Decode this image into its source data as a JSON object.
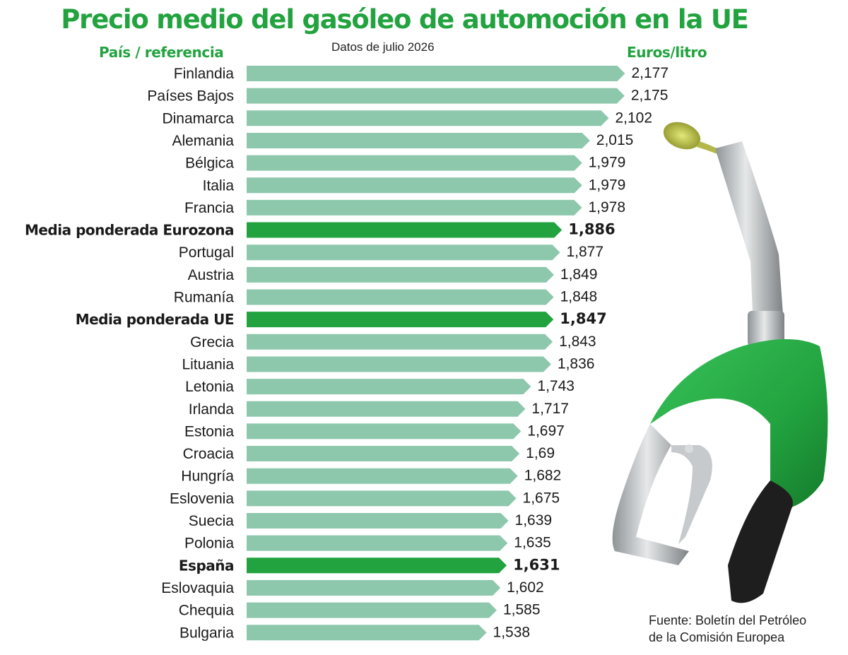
{
  "title": "Precio medio del gasóleo de automoción en la UE",
  "subtitle": "Datos de julio 2026",
  "column_left_label": "País / referencia",
  "column_right_label": "Euros/litro",
  "source_line1": "Fuente: Boletín del Petróleo",
  "source_line2": "de la Comisión Europea",
  "colors": {
    "title": "#22a33f",
    "bar": "#8dc8ad",
    "bar_highlight": "#22a33f",
    "nozzle_green": "#2bb24c",
    "nozzle_metal": "#b9bdbf"
  },
  "icons": [
    "fuel-nozzle-icon",
    "fuel-drop-icon"
  ],
  "chart_data": {
    "type": "bar",
    "orientation": "horizontal",
    "categories": [
      "Finlandia",
      "Países Bajos",
      "Dinamarca",
      "Alemania",
      "Bélgica",
      "Italia",
      "Francia",
      "Media ponderada Eurozona",
      "Portugal",
      "Austria",
      "Rumanía",
      "Media ponderada UE",
      "Grecia",
      "Lituania",
      "Letonia",
      "Irlanda",
      "Estonia",
      "Croacia",
      "Hungría",
      "Eslovenia",
      "Suecia",
      "Polonia",
      "España",
      "Eslovaquia",
      "Chequia",
      "Bulgaria"
    ],
    "values": [
      2.177,
      2.175,
      2.102,
      2.015,
      1.979,
      1.979,
      1.978,
      1.886,
      1.877,
      1.849,
      1.848,
      1.847,
      1.843,
      1.836,
      1.743,
      1.717,
      1.697,
      1.69,
      1.682,
      1.675,
      1.639,
      1.635,
      1.631,
      1.602,
      1.585,
      1.538
    ],
    "labels": [
      "2,177",
      "2,175",
      "2,102",
      "2,015",
      "1,979",
      "1,979",
      "1,978",
      "1,886",
      "1,877",
      "1,849",
      "1,848",
      "1,847",
      "1,843",
      "1,836",
      "1,743",
      "1,717",
      "1,697",
      "1,69",
      "1,682",
      "1,675",
      "1,639",
      "1,635",
      "1,631",
      "1,602",
      "1,585",
      "1,538"
    ],
    "highlighted": [
      "Media ponderada Eurozona",
      "Media ponderada UE",
      "España"
    ],
    "unit": "Euros/litro",
    "grid": false
  }
}
